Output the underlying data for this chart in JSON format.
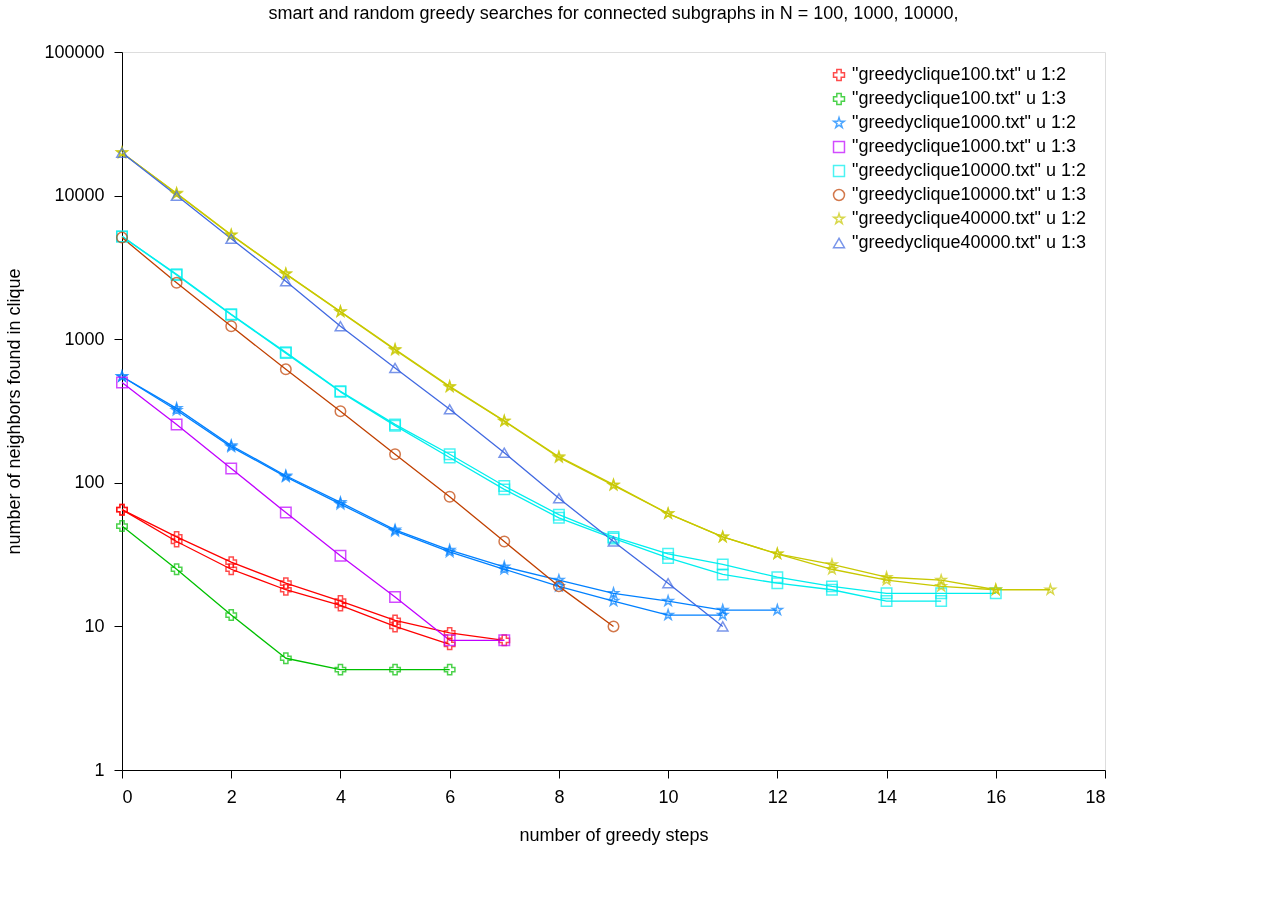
{
  "chart_data": {
    "type": "line",
    "title": "smart and random greedy searches for connected subgraphs in N = 100, 1000, 10000,",
    "xlabel": "number of greedy steps",
    "ylabel": "number of neighbors found in clique",
    "log": "y",
    "grid": false,
    "legend": "top right",
    "line_style": "solid",
    "xlim": [
      0,
      18
    ],
    "xticks": [
      0,
      2,
      4,
      6,
      8,
      10,
      12,
      14,
      16,
      18
    ],
    "ylim": [
      1,
      100000
    ],
    "yticks": [
      1,
      10,
      100,
      1000,
      10000,
      100000
    ],
    "series": [
      {
        "name": "\"greedyclique100.txt\"  u 1:2",
        "color": "#ff0000",
        "marker": "cross",
        "x": [
          0,
          1,
          2,
          3,
          4,
          5,
          6,
          7
        ],
        "values": [
          65,
          42,
          28,
          20,
          15,
          11,
          9,
          8
        ]
      },
      {
        "color": "#ff0000",
        "marker": "cross",
        "x": [
          0,
          1,
          2,
          3,
          4,
          5,
          6
        ],
        "values": [
          65,
          39,
          25,
          18,
          14,
          10,
          7.5
        ]
      },
      {
        "name": "\"greedyclique100.txt\" u 1:3",
        "color": "#00c000",
        "marker": "cross",
        "x": [
          0,
          1,
          2,
          3,
          4,
          5,
          6
        ],
        "values": [
          50,
          25,
          12,
          6,
          5,
          5,
          5
        ]
      },
      {
        "name": "\"greedyclique1000.txt\"  u 1:2",
        "color": "#0080ff",
        "marker": "star",
        "x": [
          0,
          1,
          2,
          3,
          4,
          5,
          6,
          7,
          8,
          9,
          10,
          11,
          12
        ],
        "values": [
          550,
          330,
          182,
          112,
          73,
          47,
          34,
          26,
          21,
          17,
          15,
          13,
          13
        ]
      },
      {
        "color": "#0080ff",
        "marker": "star",
        "x": [
          0,
          1,
          2,
          3,
          4,
          5,
          6,
          7,
          8,
          9,
          10,
          11
        ],
        "values": [
          550,
          320,
          178,
          110,
          71,
          46,
          33,
          25,
          19,
          15,
          12,
          12
        ]
      },
      {
        "name": "\"greedyclique1000.txt\" u 1:3",
        "color": "#c000ff",
        "marker": "square",
        "x": [
          0,
          1,
          2,
          3,
          4,
          5,
          6,
          7
        ],
        "values": [
          500,
          255,
          126,
          62,
          31,
          16,
          8,
          8
        ]
      },
      {
        "name": "\"greedyclique10000.txt\"  u 1:2",
        "color": "#00eeee",
        "marker": "square",
        "x": [
          0,
          1,
          2,
          3,
          4,
          5,
          6,
          7,
          8,
          9,
          10,
          11,
          12,
          13,
          14,
          15,
          16
        ],
        "values": [
          5200,
          2830,
          1490,
          810,
          434,
          255,
          158,
          95,
          60,
          42,
          32,
          27,
          22,
          19,
          17,
          17,
          17
        ]
      },
      {
        "color": "#00eeee",
        "marker": "square",
        "x": [
          0,
          1,
          2,
          3,
          4,
          5,
          6,
          7,
          8,
          9,
          10,
          11,
          12,
          13,
          14,
          15
        ],
        "values": [
          5200,
          2800,
          1480,
          800,
          430,
          250,
          150,
          90,
          57,
          41,
          30,
          23,
          20,
          18,
          15,
          15
        ]
      },
      {
        "name": "\"greedyclique10000.txt\" u 1:3",
        "color": "#c04000",
        "marker": "circle",
        "x": [
          0,
          1,
          2,
          3,
          4,
          5,
          6,
          7,
          8,
          9
        ],
        "values": [
          5100,
          2470,
          1230,
          617,
          315,
          158,
          80,
          39,
          19,
          10
        ]
      },
      {
        "name": "\"greedyclique40000.txt\"  u 1:2",
        "color": "#c8c800",
        "marker": "star",
        "x": [
          0,
          1,
          2,
          3,
          4,
          5,
          6,
          7,
          8,
          9,
          10,
          11,
          12,
          13,
          14,
          15,
          16,
          17
        ],
        "values": [
          19900,
          10400,
          5330,
          2860,
          1560,
          850,
          470,
          270,
          152,
          97,
          61,
          42,
          32,
          27,
          22,
          21,
          18,
          18
        ]
      },
      {
        "color": "#c8c800",
        "marker": "star",
        "x": [
          0,
          1,
          2,
          3,
          4,
          5,
          6,
          7,
          8,
          9,
          10,
          11,
          12,
          13,
          14,
          15,
          16
        ],
        "values": [
          19900,
          10300,
          5300,
          2840,
          1550,
          840,
          465,
          268,
          150,
          96,
          61,
          42,
          32,
          25,
          21,
          19,
          18
        ]
      },
      {
        "name": "\"greedyclique40000.txt\" u 1:3",
        "color": "#4169e1",
        "marker": "triangle",
        "x": [
          0,
          1,
          2,
          3,
          4,
          5,
          6,
          7,
          8,
          9,
          10,
          11
        ],
        "values": [
          19900,
          10000,
          5000,
          2530,
          1230,
          630,
          325,
          162,
          78,
          39,
          20,
          10
        ]
      }
    ]
  }
}
